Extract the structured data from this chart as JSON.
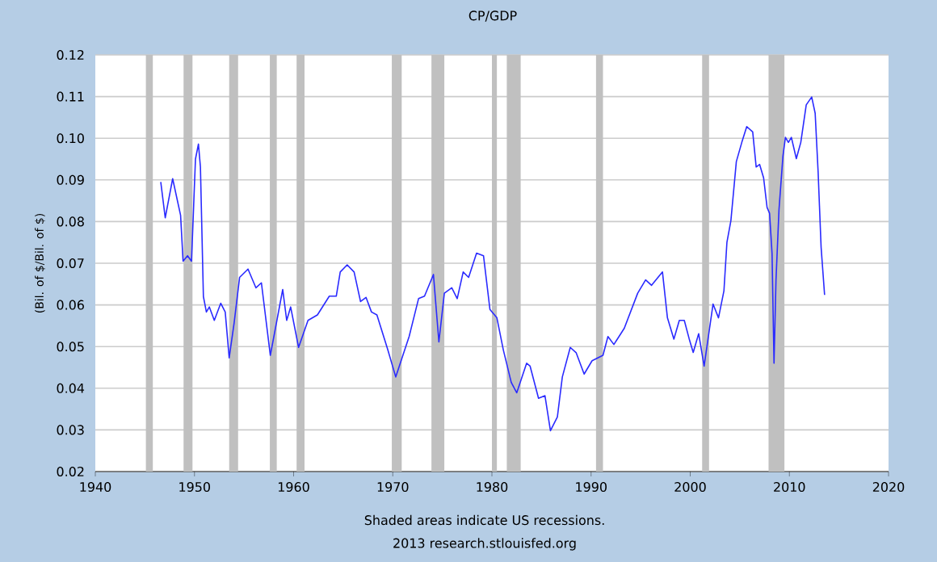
{
  "chart_data": {
    "type": "line",
    "title": "CP/GDP",
    "ylabel": "(Bil. of $/Bil. of $)",
    "annotations": [
      "Shaded areas indicate US recessions.",
      "2013 research.stlouisfed.org"
    ],
    "series": [
      {
        "color": "#2a2aff",
        "x": [
          1946.6,
          1947.05,
          1947.8,
          1948.6,
          1948.85,
          1949.3,
          1949.7,
          1950.1,
          1950.4,
          1950.6,
          1950.9,
          1951.2,
          1951.5,
          1952.0,
          1952.65,
          1953.1,
          1953.5,
          1954.0,
          1954.55,
          1955.4,
          1956.2,
          1956.75,
          1957.65,
          1958.9,
          1959.3,
          1959.7,
          1960.5,
          1961.45,
          1962.4,
          1963.6,
          1964.3,
          1964.7,
          1965.4,
          1966.1,
          1966.75,
          1967.3,
          1967.85,
          1968.4,
          1969.5,
          1970.3,
          1971.65,
          1972.6,
          1973.2,
          1974.1,
          1974.65,
          1975.2,
          1975.95,
          1976.5,
          1977.1,
          1977.65,
          1978.45,
          1979.15,
          1979.8,
          1980.5,
          1981.15,
          1981.95,
          1982.5,
          1983.5,
          1983.85,
          1984.7,
          1985.35,
          1985.9,
          1986.6,
          1987.1,
          1987.9,
          1988.5,
          1989.3,
          1990.1,
          1991.2,
          1991.7,
          1992.3,
          1993.35,
          1994.7,
          1995.5,
          1996.1,
          1997.2,
          1997.7,
          1998.35,
          1998.9,
          1999.4,
          1999.9,
          2000.3,
          2000.85,
          2001.4,
          2002.3,
          2002.85,
          2003.4,
          2003.7,
          2004.1,
          2004.65,
          2005.2,
          2005.7,
          2006.3,
          2006.65,
          2007.0,
          2007.4,
          2007.75,
          2008.0,
          2008.25,
          2008.45,
          2008.65,
          2008.95,
          2009.35,
          2009.6,
          2009.9,
          2010.2,
          2010.7,
          2011.15,
          2011.7,
          2012.25,
          2012.6,
          2012.9,
          2013.2,
          2013.55
        ],
        "values": [
          0.0895,
          0.0809,
          0.0903,
          0.0815,
          0.0705,
          0.0718,
          0.0705,
          0.095,
          0.0986,
          0.0931,
          0.062,
          0.0583,
          0.0595,
          0.0563,
          0.0604,
          0.0583,
          0.0473,
          0.0557,
          0.0666,
          0.0686,
          0.0641,
          0.0653,
          0.0479,
          0.0637,
          0.0563,
          0.0595,
          0.0498,
          0.0563,
          0.0576,
          0.0621,
          0.0621,
          0.0679,
          0.0696,
          0.0679,
          0.0608,
          0.0618,
          0.0583,
          0.0576,
          0.0492,
          0.0427,
          0.0524,
          0.0615,
          0.0621,
          0.0673,
          0.0511,
          0.0628,
          0.0641,
          0.0615,
          0.0679,
          0.0666,
          0.0724,
          0.0718,
          0.0589,
          0.0569,
          0.0492,
          0.0414,
          0.0389,
          0.046,
          0.0453,
          0.0376,
          0.0382,
          0.0298,
          0.0331,
          0.0427,
          0.0498,
          0.0485,
          0.0434,
          0.0466,
          0.0479,
          0.0524,
          0.0505,
          0.0544,
          0.0628,
          0.066,
          0.0647,
          0.0679,
          0.0569,
          0.0518,
          0.0563,
          0.0563,
          0.0518,
          0.0486,
          0.0531,
          0.0453,
          0.0602,
          0.0569,
          0.0634,
          0.075,
          0.0802,
          0.0944,
          0.099,
          0.1028,
          0.1015,
          0.0931,
          0.0937,
          0.0905,
          0.0834,
          0.082,
          0.0724,
          0.046,
          0.066,
          0.0828,
          0.0957,
          0.1002,
          0.099,
          0.1002,
          0.0951,
          0.099,
          0.108,
          0.1099,
          0.106,
          0.0918,
          0.0738,
          0.0624
        ]
      }
    ],
    "bands": [
      {
        "axis": "x",
        "from": 1945.1,
        "to": 1945.8,
        "color": "#c0c0c0"
      },
      {
        "axis": "x",
        "from": 1948.9,
        "to": 1949.8,
        "color": "#c0c0c0"
      },
      {
        "axis": "x",
        "from": 1953.5,
        "to": 1954.4,
        "color": "#c0c0c0"
      },
      {
        "axis": "x",
        "from": 1957.6,
        "to": 1958.3,
        "color": "#c0c0c0"
      },
      {
        "axis": "x",
        "from": 1960.3,
        "to": 1961.1,
        "color": "#c0c0c0"
      },
      {
        "axis": "x",
        "from": 1969.9,
        "to": 1970.9,
        "color": "#c0c0c0"
      },
      {
        "axis": "x",
        "from": 1973.9,
        "to": 1975.2,
        "color": "#c0c0c0"
      },
      {
        "axis": "x",
        "from": 1980.0,
        "to": 1980.5,
        "color": "#c0c0c0"
      },
      {
        "axis": "x",
        "from": 1981.5,
        "to": 1982.9,
        "color": "#c0c0c0"
      },
      {
        "axis": "x",
        "from": 1990.5,
        "to": 1991.2,
        "color": "#c0c0c0"
      },
      {
        "axis": "x",
        "from": 2001.2,
        "to": 2001.9,
        "color": "#c0c0c0"
      },
      {
        "axis": "x",
        "from": 2007.9,
        "to": 2009.5,
        "color": "#c0c0c0"
      }
    ],
    "xlim": [
      1940,
      2020
    ],
    "xticks": [
      1940,
      1950,
      1960,
      1970,
      1980,
      1990,
      2000,
      2010,
      2020
    ],
    "ylim": [
      0.02,
      0.12
    ],
    "yticks": [
      0.02,
      0.03,
      0.04,
      0.05,
      0.06,
      0.07,
      0.08,
      0.09,
      {
        "value": 0.1,
        "label": "0.10"
      },
      0.11,
      0.12
    ],
    "grid": "y"
  }
}
